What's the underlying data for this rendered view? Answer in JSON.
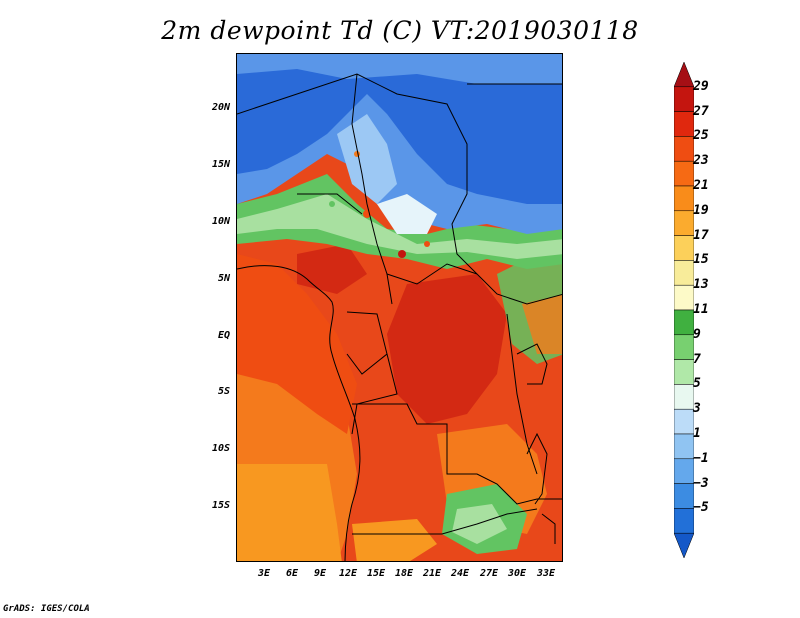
{
  "title": "2m dewpoint Td (C) VT:2019030118",
  "credit": "GrADS: IGES/COLA",
  "lat_labels": [
    "20N",
    "15N",
    "10N",
    "5N",
    "EQ",
    "5S",
    "10S",
    "15S"
  ],
  "lon_labels": [
    "3E",
    "6E",
    "9E",
    "12E",
    "15E",
    "18E",
    "21E",
    "24E",
    "27E",
    "30E",
    "33E"
  ],
  "colorbar": {
    "labels": [
      "29",
      "27",
      "25",
      "23",
      "21",
      "19",
      "17",
      "15",
      "13",
      "11",
      "9",
      "7",
      "5",
      "3",
      "1",
      "−1",
      "−3",
      "−5"
    ],
    "colors": [
      "#a50f15",
      "#c4150f",
      "#e0280e",
      "#ef4d12",
      "#f66a14",
      "#f98c1a",
      "#fbab2e",
      "#fcd05a",
      "#f8ec9a",
      "#fdfac8",
      "#40b040",
      "#78d070",
      "#b0e8a8",
      "#e8f8f0",
      "#bcdcf8",
      "#90c4f2",
      "#64a8ec",
      "#3c8ce2",
      "#2270d8",
      "#1458c8"
    ]
  },
  "map": {
    "region": "Central Africa",
    "lat_range": [
      -20,
      25
    ],
    "lon_range": [
      0,
      34
    ],
    "colors": {
      "dry_blue": "#2a6ad8",
      "mid_blue": "#5a96e8",
      "light_blue": "#9cc8f4",
      "pale": "#e6f4fa",
      "green": "#62c462",
      "light_green": "#a8e0a0",
      "orange": "#f47a1c",
      "red_orange": "#e8481a",
      "deep_red": "#c8301a",
      "orange_sw": "#f89820"
    }
  }
}
